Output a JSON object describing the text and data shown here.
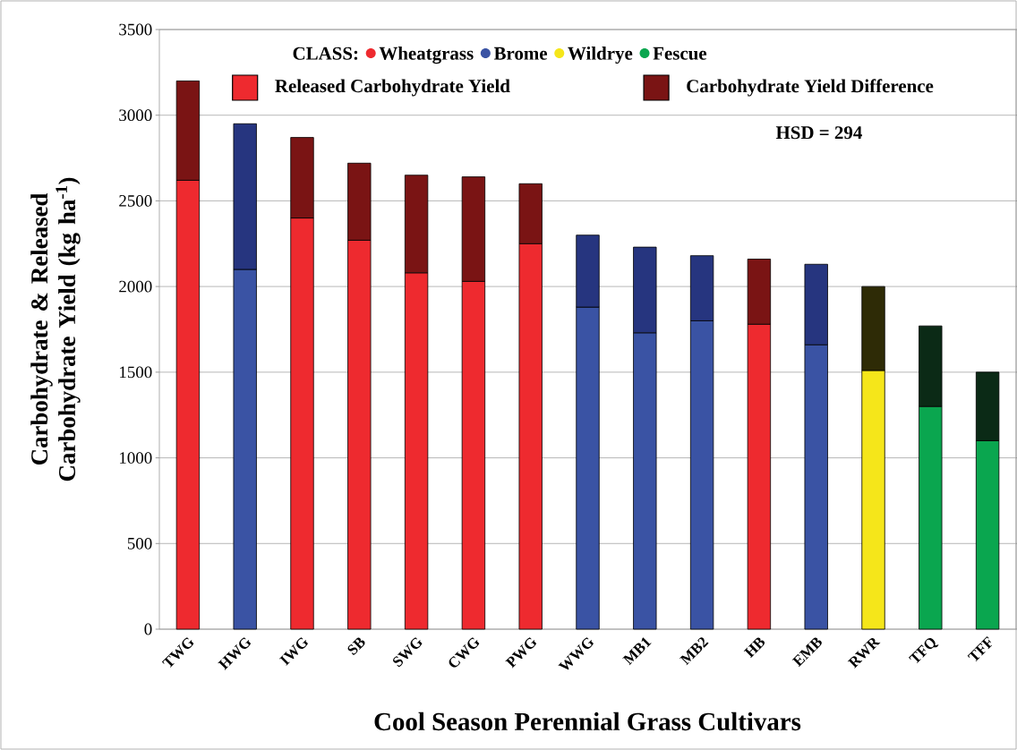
{
  "chart_data": {
    "type": "bar",
    "stacked": true,
    "xlabel": "Cool Season Perennial Grass Cultivars",
    "ylabel": "Carbohydrate & Released Carbohydrate Yield (kg ha$^{-1}$)",
    "legend_title": "CLASS:",
    "annotations": [
      "HSD = 294"
    ],
    "categories": [
      "TWG",
      "HWG",
      "IWG",
      "SB",
      "SWG",
      "CWG",
      "PWG",
      "WWG",
      "MB1",
      "MB2",
      "HB",
      "EMB",
      "RWR",
      "TFQ",
      "TFF"
    ],
    "series": [
      {
        "name": "Released Carbohydrate Yield",
        "color": "#ee2a2f",
        "colors": [
          "#ee2a2f",
          "#3a53a4",
          "#ee2a2f",
          "#ee2a2f",
          "#ee2a2f",
          "#ee2a2f",
          "#ee2a2f",
          "#3a53a4",
          "#3a53a4",
          "#3a53a4",
          "#ee2a2f",
          "#3a53a4",
          "#f5e61a",
          "#0aa64f",
          "#0aa64f"
        ],
        "values": [
          2620,
          2100,
          2400,
          2270,
          2080,
          2030,
          2250,
          1880,
          1730,
          1800,
          1780,
          1660,
          1510,
          1300,
          1100
        ]
      },
      {
        "name": "Carbohydrate Yield Difference",
        "color": "#7a1414",
        "colors": [
          "#7a1414",
          "#26357f",
          "#7a1414",
          "#7a1414",
          "#7a1414",
          "#7a1414",
          "#7a1414",
          "#26357f",
          "#26357f",
          "#26357f",
          "#7a1414",
          "#26357f",
          "#2e2b06",
          "#0b2a16",
          "#0b2a16"
        ],
        "values": [
          580,
          850,
          470,
          450,
          570,
          610,
          350,
          420,
          500,
          380,
          380,
          470,
          490,
          470,
          400
        ]
      },
      {
        "name": "Wheatgrass",
        "type": "scatter",
        "marker": "circle",
        "color": "#ee2a2f",
        "values": [
          null,
          null,
          null,
          null,
          null,
          null,
          null,
          null,
          null,
          null,
          null,
          null,
          null,
          null,
          null
        ]
      },
      {
        "name": "Brome",
        "type": "scatter",
        "marker": "circle",
        "color": "#3a53a4",
        "values": [
          null,
          null,
          null,
          null,
          null,
          null,
          null,
          null,
          null,
          null,
          null,
          null,
          null,
          null,
          null
        ]
      },
      {
        "name": "Wildrye",
        "type": "scatter",
        "marker": "circle",
        "color": "#f5e61a",
        "values": [
          null,
          null,
          null,
          null,
          null,
          null,
          null,
          null,
          null,
          null,
          null,
          null,
          null,
          null,
          null
        ]
      },
      {
        "name": "Fescue",
        "type": "scatter",
        "marker": "circle",
        "color": "#0aa64f",
        "values": [
          null,
          null,
          null,
          null,
          null,
          null,
          null,
          null,
          null,
          null,
          null,
          null,
          null,
          null,
          null
        ]
      }
    ],
    "ylim": [
      0,
      3500
    ],
    "yticks": [
      0,
      500,
      1000,
      1500,
      2000,
      2500,
      3000,
      3500
    ],
    "grid": "y",
    "legend": "top"
  }
}
